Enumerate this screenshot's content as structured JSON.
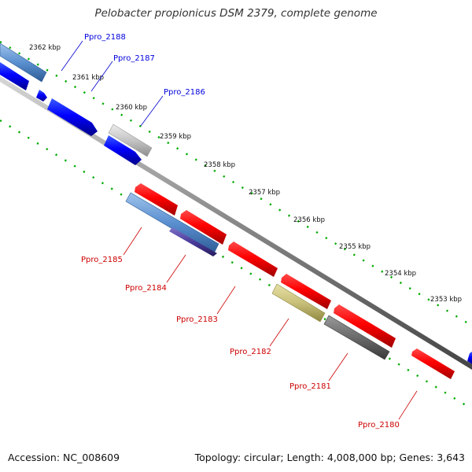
{
  "title": "Pelobacter propionicus DSM 2379, complete genome",
  "footer": {
    "accession": "Accession: NC_008609",
    "summary": "Topology: circular; Length: 4,008,000 bp; Genes: 3,643"
  },
  "ticks": [
    "2362 kbp",
    "2361 kbp",
    "2360 kbp",
    "2359 kbp",
    "2358 kbp",
    "2357 kbp",
    "2356 kbp",
    "2355 kbp",
    "2354 kbp",
    "2353 kbp"
  ],
  "genes_forward": [
    {
      "label": "Ppro_2188",
      "color": "#0000dd"
    },
    {
      "label": "Ppro_2187",
      "color": "#0000dd"
    },
    {
      "label": "Ppro_2186",
      "color": "#0000dd"
    }
  ],
  "genes_reverse": [
    {
      "label": "Ppro_2185",
      "color": "#cc0000"
    },
    {
      "label": "Ppro_2184",
      "color": "#cc0000"
    },
    {
      "label": "Ppro_2183",
      "color": "#cc0000"
    },
    {
      "label": "Ppro_2182",
      "color": "#cc0000"
    },
    {
      "label": "Ppro_2181",
      "color": "#cc0000"
    },
    {
      "label": "Ppro_2180",
      "color": "#cc0000"
    }
  ],
  "colors": {
    "forward_cds": "#0000ff",
    "reverse_cds": "#ff0000",
    "backbone": "#808080",
    "tick_dots": "#00aa00",
    "steelblue_feature": "#4f86c6",
    "grey_feature": "#bdbdbd",
    "olive_feature": "#c8c07a",
    "dark_grey_feature": "#666666",
    "slate_feature": "#4a3c9a"
  }
}
